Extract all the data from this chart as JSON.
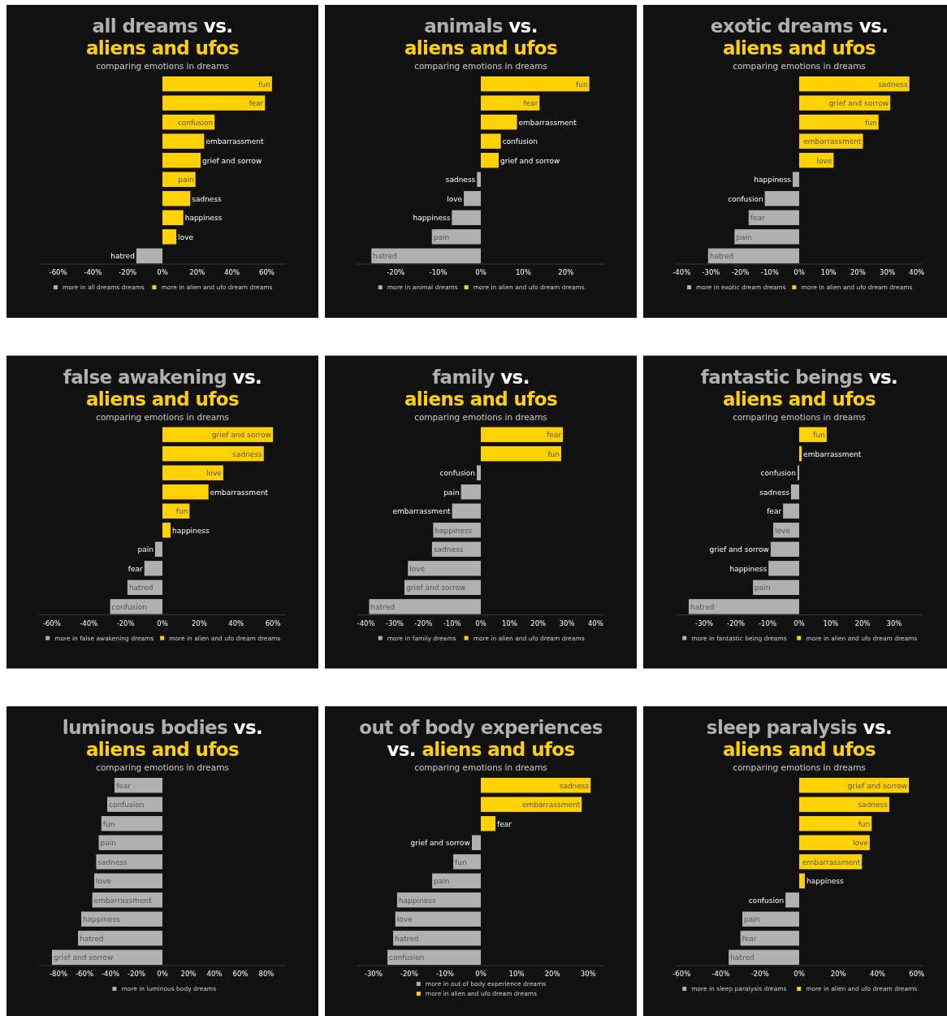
{
  "chart_data": [
    {
      "type": "bar",
      "orientation": "horizontal",
      "stacked": true,
      "legend": "bottom",
      "tick_labels": "x",
      "title": "all dreams vs. aliens and ufos",
      "subtitle": "comparing emotions in dreams",
      "categories": [
        "fun",
        "fear",
        "confusion",
        "embarrassment",
        "grief and sorrow",
        "pain",
        "sadness",
        "happiness",
        "love",
        "hatred"
      ],
      "xlim": [
        -71,
        71
      ],
      "xticks": [
        {
          "value": -60,
          "label": "-60%"
        },
        {
          "value": -40,
          "label": "-40%"
        },
        {
          "value": -20,
          "label": "-20%"
        },
        {
          "value": 0,
          "label": "0%"
        },
        {
          "value": 20,
          "label": "20%"
        },
        {
          "value": 40,
          "label": "40%"
        },
        {
          "value": 60,
          "label": "60%"
        }
      ],
      "series": [
        {
          "name": "more in all dreams dreams",
          "color": "#b0b0b0",
          "values": [
            null,
            null,
            null,
            null,
            null,
            null,
            null,
            null,
            null,
            -15
          ]
        },
        {
          "name": "more in alien and ufo dream dreams",
          "color": "#ffd100",
          "values": [
            63,
            59,
            30,
            24,
            22,
            19,
            16,
            12,
            8,
            null
          ]
        }
      ]
    },
    {
      "type": "bar",
      "orientation": "horizontal",
      "stacked": true,
      "legend": "bottom",
      "tick_labels": "x",
      "title": "animals vs. aliens and ufos",
      "subtitle": "comparing emotions in dreams",
      "categories": [
        "fun",
        "fear",
        "embarrassment",
        "confusion",
        "grief and sorrow",
        "sadness",
        "love",
        "happiness",
        "pain",
        "hatred"
      ],
      "xlim": [
        -29,
        29
      ],
      "xticks": [
        {
          "value": -20,
          "label": "-20%"
        },
        {
          "value": -10,
          "label": "-10%"
        },
        {
          "value": 0,
          "label": "0%"
        },
        {
          "value": 10,
          "label": "10%"
        },
        {
          "value": 20,
          "label": "20%"
        }
      ],
      "series": [
        {
          "name": "more in animal dreams",
          "color": "#b0b0b0",
          "values": [
            null,
            null,
            null,
            null,
            null,
            -0.9,
            -4,
            -6.8,
            -11.5,
            -25.7
          ]
        },
        {
          "name": "more in alien and ufo dream dreams",
          "color": "#ffd100",
          "values": [
            25.5,
            13.8,
            8.5,
            4.7,
            4.2,
            null,
            null,
            null,
            null,
            null
          ]
        }
      ]
    },
    {
      "type": "bar",
      "orientation": "horizontal",
      "stacked": true,
      "legend": "bottom",
      "tick_labels": "x",
      "title": "exotic dreams vs. aliens and ufos",
      "subtitle": "comparing emotions in dreams",
      "categories": [
        "sadness",
        "grief and sorrow",
        "fun",
        "embarrassment",
        "love",
        "happiness",
        "confusion",
        "fear",
        "pain",
        "hatred"
      ],
      "xlim": [
        -42,
        42
      ],
      "xticks": [
        {
          "value": -40,
          "label": "-40%"
        },
        {
          "value": -30,
          "label": "-30%"
        },
        {
          "value": -20,
          "label": "-20%"
        },
        {
          "value": -10,
          "label": "-10%"
        },
        {
          "value": 0,
          "label": "0%"
        },
        {
          "value": 10,
          "label": "10%"
        },
        {
          "value": 20,
          "label": "20%"
        },
        {
          "value": 30,
          "label": "30%"
        },
        {
          "value": 40,
          "label": "40%"
        }
      ],
      "series": [
        {
          "name": "more in exotic dream dreams",
          "color": "#b0b0b0",
          "values": [
            null,
            null,
            null,
            null,
            null,
            -2.2,
            -11.7,
            -17.2,
            -22,
            -31
          ]
        },
        {
          "name": "more in alien and ufo dream dreams",
          "color": "#ffd100",
          "values": [
            37.5,
            31,
            27,
            21.7,
            11.7,
            null,
            null,
            null,
            null,
            null
          ]
        }
      ]
    },
    {
      "type": "bar",
      "orientation": "horizontal",
      "stacked": true,
      "legend": "bottom",
      "tick_labels": "x",
      "title": "false awakening vs. aliens and ufos",
      "subtitle": "comparing emotions in dreams",
      "categories": [
        "grief and sorrow",
        "sadness",
        "love",
        "embarrassment",
        "fun",
        "happiness",
        "pain",
        "fear",
        "hatred",
        "confusion"
      ],
      "xlim": [
        -67,
        67
      ],
      "xticks": [
        {
          "value": -60,
          "label": "-60%"
        },
        {
          "value": -40,
          "label": "-40%"
        },
        {
          "value": -20,
          "label": "-20%"
        },
        {
          "value": 0,
          "label": "0%"
        },
        {
          "value": 20,
          "label": "20%"
        },
        {
          "value": 40,
          "label": "40%"
        },
        {
          "value": 60,
          "label": "60%"
        }
      ],
      "series": [
        {
          "name": "more in false awakening dreams",
          "color": "#b0b0b0",
          "values": [
            null,
            null,
            null,
            null,
            null,
            null,
            -4,
            -9.8,
            -19,
            -28.4
          ]
        },
        {
          "name": "more in alien and ufo dream dreams",
          "color": "#ffd100",
          "values": [
            60,
            55,
            33,
            25,
            14.7,
            4.4,
            null,
            null,
            null,
            null
          ]
        }
      ]
    },
    {
      "type": "bar",
      "orientation": "horizontal",
      "stacked": true,
      "legend": "bottom",
      "tick_labels": "x",
      "title": "family vs. aliens and ufos",
      "subtitle": "comparing emotions in dreams",
      "categories": [
        "fear",
        "fun",
        "confusion",
        "pain",
        "embarrassment",
        "happiness",
        "sadness",
        "love",
        "grief and sorrow",
        "hatred"
      ],
      "xlim": [
        -43,
        43
      ],
      "xticks": [
        {
          "value": -40,
          "label": "-40%"
        },
        {
          "value": -30,
          "label": "-30%"
        },
        {
          "value": -20,
          "label": "-20%"
        },
        {
          "value": -10,
          "label": "-10%"
        },
        {
          "value": 0,
          "label": "0%"
        },
        {
          "value": 10,
          "label": "10%"
        },
        {
          "value": 20,
          "label": "20%"
        },
        {
          "value": 30,
          "label": "30%"
        },
        {
          "value": 40,
          "label": "40%"
        }
      ],
      "series": [
        {
          "name": "more in family dreams",
          "color": "#b0b0b0",
          "values": [
            null,
            null,
            -1.4,
            -6.9,
            -10,
            -16.6,
            -17,
            -25.4,
            -26.6,
            -38.9
          ]
        },
        {
          "name": "more in alien and ufo dream dreams",
          "color": "#ffd100",
          "values": [
            28.6,
            28,
            null,
            null,
            null,
            null,
            null,
            null,
            null,
            null
          ]
        }
      ]
    },
    {
      "type": "bar",
      "orientation": "horizontal",
      "stacked": true,
      "legend": "bottom",
      "tick_labels": "x",
      "title": "fantastic beings vs. aliens and ufos",
      "subtitle": "comparing emotions in dreams",
      "categories": [
        "fun",
        "embarrassment",
        "confusion",
        "sadness",
        "fear",
        "love",
        "grief and sorrow",
        "happiness",
        "pain",
        "hatred"
      ],
      "xlim": [
        -39,
        39
      ],
      "xticks": [
        {
          "value": -30,
          "label": "-30%"
        },
        {
          "value": -20,
          "label": "-20%"
        },
        {
          "value": -10,
          "label": "-10%"
        },
        {
          "value": 0,
          "label": "0%"
        },
        {
          "value": 10,
          "label": "10%"
        },
        {
          "value": 20,
          "label": "20%"
        },
        {
          "value": 30,
          "label": "30%"
        }
      ],
      "series": [
        {
          "name": "more in fantastic being dreams",
          "color": "#b0b0b0",
          "values": [
            null,
            null,
            -0.5,
            -2.6,
            -5.1,
            -8.2,
            -9,
            -9.7,
            -14.6,
            -34.9
          ]
        },
        {
          "name": "more in alien and ufo dream dreams",
          "color": "#ffd100",
          "values": [
            8.7,
            0.8,
            null,
            null,
            null,
            null,
            null,
            null,
            null,
            null
          ]
        }
      ]
    },
    {
      "type": "bar",
      "orientation": "horizontal",
      "stacked": true,
      "legend": "bottom",
      "tick_labels": "x",
      "title": "luminous bodies vs. aliens and ufos",
      "subtitle": "comparing emotions in dreams",
      "categories": [
        "fear",
        "confusion",
        "fun",
        "pain",
        "sadness",
        "love",
        "embarrassment",
        "happiness",
        "hatred",
        "grief and sorrow"
      ],
      "xlim": [
        -95,
        95
      ],
      "xticks": [
        {
          "value": -80,
          "label": "-80%"
        },
        {
          "value": -60,
          "label": "-60%"
        },
        {
          "value": -40,
          "label": "-40%"
        },
        {
          "value": -20,
          "label": "-20%"
        },
        {
          "value": 0,
          "label": "0%"
        },
        {
          "value": 20,
          "label": "20%"
        },
        {
          "value": 40,
          "label": "40%"
        },
        {
          "value": 60,
          "label": "60%"
        },
        {
          "value": 80,
          "label": "80%"
        }
      ],
      "series": [
        {
          "name": "more in luminous body dreams",
          "color": "#b0b0b0",
          "values": [
            -36.9,
            -42.5,
            -47,
            -49,
            -51,
            -52.5,
            -54,
            -62.5,
            -65,
            -85
          ]
        }
      ]
    },
    {
      "type": "bar",
      "orientation": "horizontal",
      "stacked": true,
      "legend": "bottom",
      "tick_labels": "x",
      "title": "out of body experiences vs. aliens and ufos",
      "subtitle": "comparing emotions in dreams",
      "categories": [
        "sadness",
        "embarrassment",
        "fear",
        "grief and sorrow",
        "fun",
        "pain",
        "happiness",
        "love",
        "hatred",
        "confusion"
      ],
      "xlim": [
        -34.5,
        34.5
      ],
      "xticks": [
        {
          "value": -30,
          "label": "-30%"
        },
        {
          "value": -20,
          "label": "-20%"
        },
        {
          "value": -10,
          "label": "-10%"
        },
        {
          "value": 0,
          "label": "0%"
        },
        {
          "value": 10,
          "label": "10%"
        },
        {
          "value": 20,
          "label": "20%"
        },
        {
          "value": 30,
          "label": "30%"
        }
      ],
      "series": [
        {
          "name": "more in out of body experience dreams",
          "color": "#b0b0b0",
          "values": [
            null,
            null,
            null,
            -2.5,
            -7.7,
            -13.6,
            -23.4,
            -23.9,
            -24.5,
            -26.1
          ]
        },
        {
          "name": "more in alien and ufo dream dreams",
          "color": "#ffd100",
          "values": [
            30.7,
            28.2,
            4.1,
            null,
            null,
            null,
            null,
            null,
            null,
            null
          ]
        }
      ]
    },
    {
      "type": "bar",
      "orientation": "horizontal",
      "stacked": true,
      "legend": "bottom",
      "tick_labels": "x",
      "title": "sleep paralysis vs. aliens and ufos",
      "subtitle": "comparing emotions in dreams",
      "categories": [
        "grief and sorrow",
        "sadness",
        "fun",
        "love",
        "embarrassment",
        "happiness",
        "confusion",
        "pain",
        "fear",
        "hatred"
      ],
      "xlim": [
        -63,
        63
      ],
      "xticks": [
        {
          "value": -60,
          "label": "-60%"
        },
        {
          "value": -40,
          "label": "-40%"
        },
        {
          "value": -20,
          "label": "-20%"
        },
        {
          "value": 0,
          "label": "0%"
        },
        {
          "value": 20,
          "label": "20%"
        },
        {
          "value": 40,
          "label": "40%"
        },
        {
          "value": 60,
          "label": "60%"
        }
      ],
      "series": [
        {
          "name": "more in sleep paralysis dreams",
          "color": "#b0b0b0",
          "values": [
            null,
            null,
            null,
            null,
            null,
            null,
            -7,
            -29,
            -30,
            -36
          ]
        },
        {
          "name": "more in alien and ufo dream dreams",
          "color": "#ffd100",
          "values": [
            56,
            46,
            37,
            36,
            32,
            2.9,
            null,
            null,
            null,
            null
          ]
        }
      ]
    }
  ]
}
